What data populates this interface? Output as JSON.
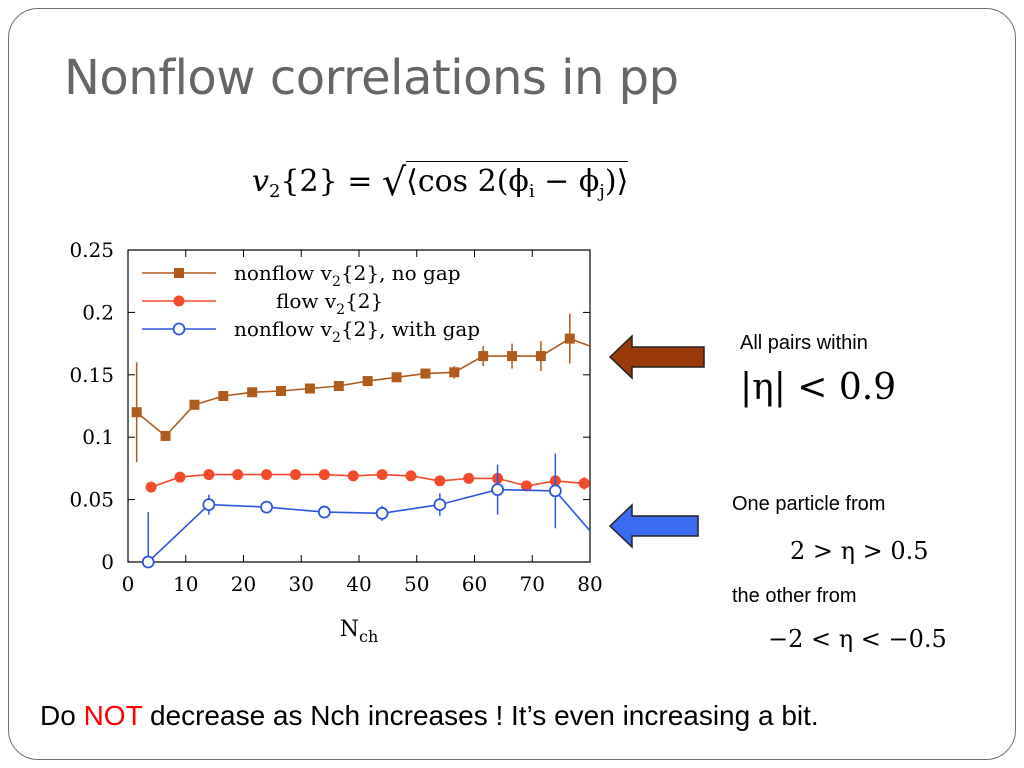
{
  "slide": {
    "title": "Nonflow correlations in pp",
    "formula": {
      "lhs": "v",
      "lhs_sub": "2",
      "braces": "{2} =",
      "radicand": "⟨cos 2(ϕ",
      "i": "i",
      "minus": " − ϕ",
      "j": "j",
      "close": ")⟩"
    },
    "annotations": {
      "all_pairs": "All pairs within",
      "abs_eta": "|η| < 0.9",
      "one_particle": "One particle from",
      "range_pos": "2 > η > 0.5",
      "other_from": "the other from",
      "range_neg": "−2 < η < −0.5"
    },
    "bottom_line": {
      "pre": "Do ",
      "emph": "NOT",
      "post": " decrease as Nch increases ! It’s even increasing a bit."
    },
    "colors": {
      "title": "#666666",
      "emphasis": "#ff0000",
      "arrow_brown": "#9a3a0a",
      "arrow_blue": "#3b6bf0"
    }
  },
  "chart_data": {
    "type": "line",
    "xlabel": "N",
    "xlabel_sub": "ch",
    "ylabel": "",
    "xlim": [
      0,
      80
    ],
    "ylim": [
      0,
      0.25
    ],
    "xticks": [
      "0",
      "10",
      "20",
      "30",
      "40",
      "50",
      "60",
      "70",
      "80"
    ],
    "yticks": [
      "0",
      "0.05",
      "0.1",
      "0.15",
      "0.2",
      "0.25"
    ],
    "grid": false,
    "legend_position": "top-left",
    "series": [
      {
        "name": "nonflow v2{2}, no gap",
        "legend": {
          "pre": "nonflow v",
          "sub": "2",
          "post": "{2}, no gap"
        },
        "color": "#b05a1e",
        "marker": "square",
        "x": [
          1.5,
          6.5,
          11.5,
          16.5,
          21.5,
          26.5,
          31.5,
          36.5,
          41.5,
          46.5,
          51.5,
          56.5,
          61.5,
          66.5,
          71.5,
          76.5,
          80
        ],
        "y": [
          0.12,
          0.101,
          0.126,
          0.133,
          0.136,
          0.137,
          0.139,
          0.141,
          0.145,
          0.148,
          0.151,
          0.152,
          0.165,
          0.165,
          0.165,
          0.179,
          0.173
        ],
        "err": [
          0.04,
          0.004,
          0.003,
          0.003,
          0.003,
          0.003,
          0.003,
          0.003,
          0.003,
          0.004,
          0.004,
          0.005,
          0.008,
          0.01,
          0.012,
          0.02,
          0
        ]
      },
      {
        "name": "flow v2{2}",
        "legend": {
          "pre": "flow v",
          "sub": "2",
          "post": "{2}"
        },
        "color": "#f24a2c",
        "marker": "circle-filled",
        "x": [
          4,
          9,
          14,
          19,
          24,
          29,
          34,
          39,
          44,
          49,
          54,
          59,
          64,
          69,
          74,
          79
        ],
        "y": [
          0.06,
          0.068,
          0.07,
          0.07,
          0.07,
          0.07,
          0.07,
          0.069,
          0.07,
          0.069,
          0.065,
          0.067,
          0.067,
          0.061,
          0.065,
          0.063
        ],
        "err": [
          0.002,
          0.002,
          0.002,
          0.002,
          0.002,
          0.002,
          0.002,
          0.002,
          0.002,
          0.002,
          0.003,
          0.003,
          0.003,
          0.003,
          0.004,
          0.005
        ]
      },
      {
        "name": "nonflow v2{2}, with gap",
        "legend": {
          "pre": "nonflow v",
          "sub": "2",
          "post": "{2}, with gap"
        },
        "color": "#2f56e0",
        "marker": "circle-open",
        "x": [
          3.5,
          14,
          24,
          34,
          44,
          54,
          64,
          74,
          80
        ],
        "y": [
          0,
          0.046,
          0.044,
          0.04,
          0.039,
          0.046,
          0.058,
          0.057,
          0.025
        ],
        "err": [
          0.04,
          0.008,
          0.004,
          0.005,
          0.006,
          0.009,
          0.02,
          0.03,
          0
        ]
      }
    ]
  }
}
